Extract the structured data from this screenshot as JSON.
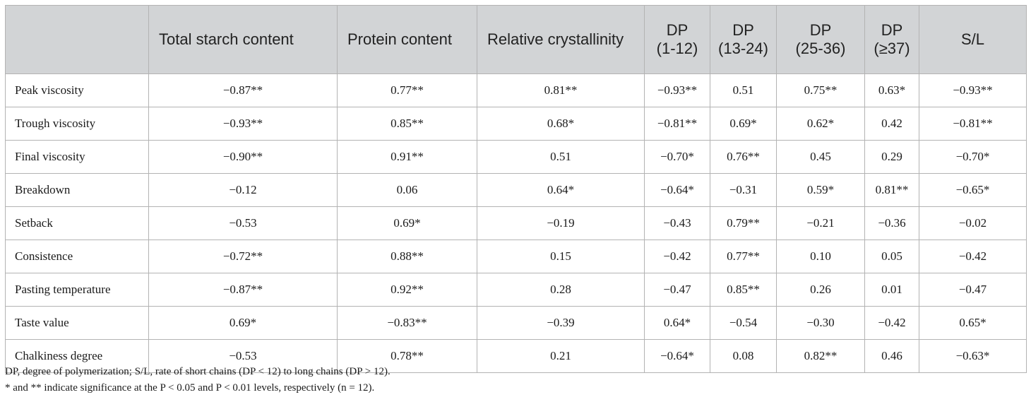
{
  "header": {
    "corner": "",
    "columns": [
      {
        "id": "total-starch",
        "lines": [
          "Total starch content"
        ]
      },
      {
        "id": "protein",
        "lines": [
          "Protein content"
        ]
      },
      {
        "id": "crystallinity",
        "lines": [
          "Relative crystallinity"
        ]
      },
      {
        "id": "dp-1-12",
        "lines": [
          "DP",
          "(1-12)"
        ]
      },
      {
        "id": "dp-13-24",
        "lines": [
          "DP",
          "(13-24)"
        ]
      },
      {
        "id": "dp-25-36",
        "lines": [
          "DP",
          "(25-36)"
        ]
      },
      {
        "id": "dp-37",
        "lines": [
          "DP",
          "(≥37)"
        ]
      },
      {
        "id": "s-l",
        "lines": [
          "S/L"
        ]
      }
    ]
  },
  "rows": [
    {
      "label": "Peak viscosity",
      "values": [
        "−0.87**",
        "0.77**",
        "0.81**",
        "−0.93**",
        "0.51",
        "0.75**",
        "0.63*",
        "−0.93**"
      ]
    },
    {
      "label": "Trough viscosity",
      "values": [
        "−0.93**",
        "0.85**",
        "0.68*",
        "−0.81**",
        "0.69*",
        "0.62*",
        "0.42",
        "−0.81**"
      ]
    },
    {
      "label": "Final viscosity",
      "values": [
        "−0.90**",
        "0.91**",
        "0.51",
        "−0.70*",
        "0.76**",
        "0.45",
        "0.29",
        "−0.70*"
      ]
    },
    {
      "label": "Breakdown",
      "values": [
        "−0.12",
        "0.06",
        "0.64*",
        "−0.64*",
        "−0.31",
        "0.59*",
        "0.81**",
        "−0.65*"
      ]
    },
    {
      "label": "Setback",
      "values": [
        "−0.53",
        "0.69*",
        "−0.19",
        "−0.43",
        "0.79**",
        "−0.21",
        "−0.36",
        "−0.02"
      ]
    },
    {
      "label": "Consistence",
      "values": [
        "−0.72**",
        "0.88**",
        "0.15",
        "−0.42",
        "0.77**",
        "0.10",
        "0.05",
        "−0.42"
      ]
    },
    {
      "label": "Pasting temperature",
      "values": [
        "−0.87**",
        "0.92**",
        "0.28",
        "−0.47",
        "0.85**",
        "0.26",
        "0.01",
        "−0.47"
      ]
    },
    {
      "label": "Taste value",
      "values": [
        "0.69*",
        "−0.83**",
        "−0.39",
        "0.64*",
        "−0.54",
        "−0.30",
        "−0.42",
        "0.65*"
      ]
    },
    {
      "label": "Chalkiness degree",
      "values": [
        "−0.53",
        "0.78**",
        "0.21",
        "−0.64*",
        "0.08",
        "0.82**",
        "0.46",
        "−0.63*"
      ]
    }
  ],
  "footnotes": {
    "abbreviations": "DP, degree of polymerization; S/L, rate of short chains (DP < 12) to long chains (DP > 12).",
    "significance": "* and ** indicate significance at the P < 0.05 and P < 0.01 levels, respectively (n = 12)."
  }
}
